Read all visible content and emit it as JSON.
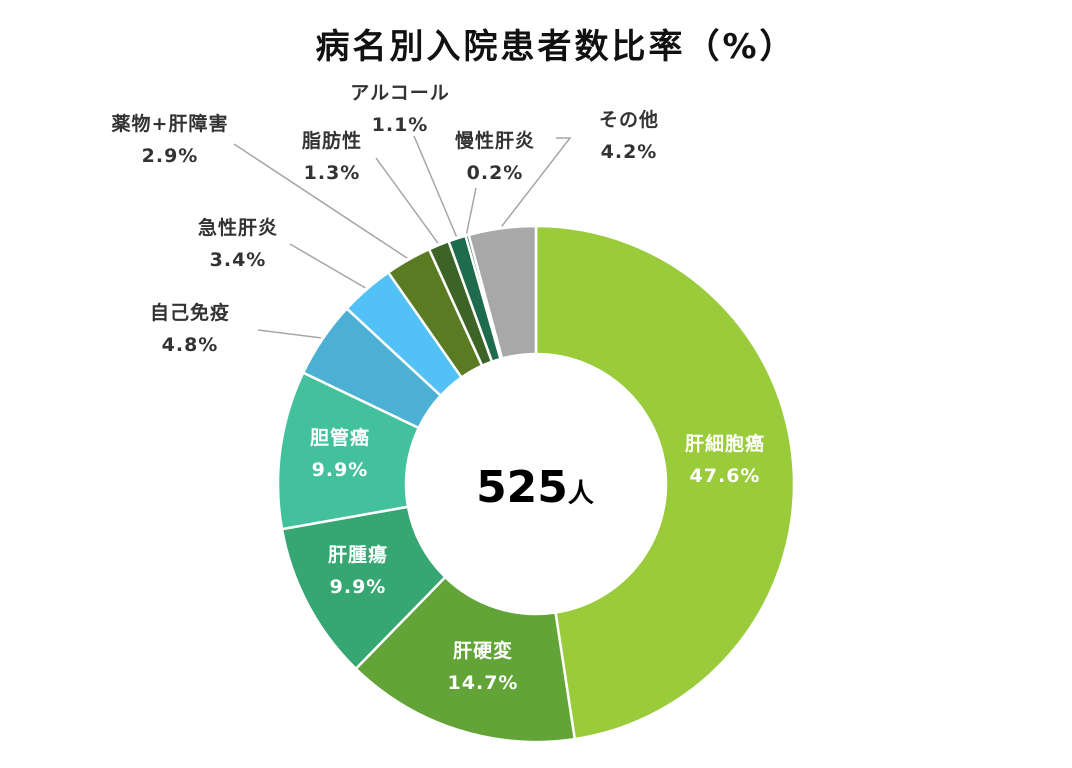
{
  "chart_data": {
    "type": "pie",
    "title": "病名別入院患者数比率（%）",
    "center_label": {
      "number": "525",
      "unit": "人"
    },
    "slices": [
      {
        "name": "肝細胞癌",
        "value": 47.6,
        "label": "47.6%",
        "color": "#9acb3a"
      },
      {
        "name": "肝硬変",
        "value": 14.7,
        "label": "14.7%",
        "color": "#62a437"
      },
      {
        "name": "肝腫瘍",
        "value": 9.9,
        "label": "9.9%",
        "color": "#36a672"
      },
      {
        "name": "胆管癌",
        "value": 9.9,
        "label": "9.9%",
        "color": "#43c19c"
      },
      {
        "name": "自己免疫",
        "value": 4.8,
        "label": "4.8%",
        "color": "#4bb0d3"
      },
      {
        "name": "急性肝炎",
        "value": 3.4,
        "label": "3.4%",
        "color": "#52c1f5"
      },
      {
        "name": "薬物+肝障害",
        "value": 2.9,
        "label": "2.9%",
        "color": "#5b7b22"
      },
      {
        "name": "脂肪性",
        "value": 1.3,
        "label": "1.3%",
        "color": "#3d6426"
      },
      {
        "name": "アルコール",
        "value": 1.1,
        "label": "1.1%",
        "color": "#1f6b4d"
      },
      {
        "name": "慢性肝炎",
        "value": 0.2,
        "label": "0.2%",
        "color": "#155a44"
      },
      {
        "name": "その他",
        "value": 4.2,
        "label": "4.2%",
        "color": "#a8a8a8"
      }
    ]
  }
}
